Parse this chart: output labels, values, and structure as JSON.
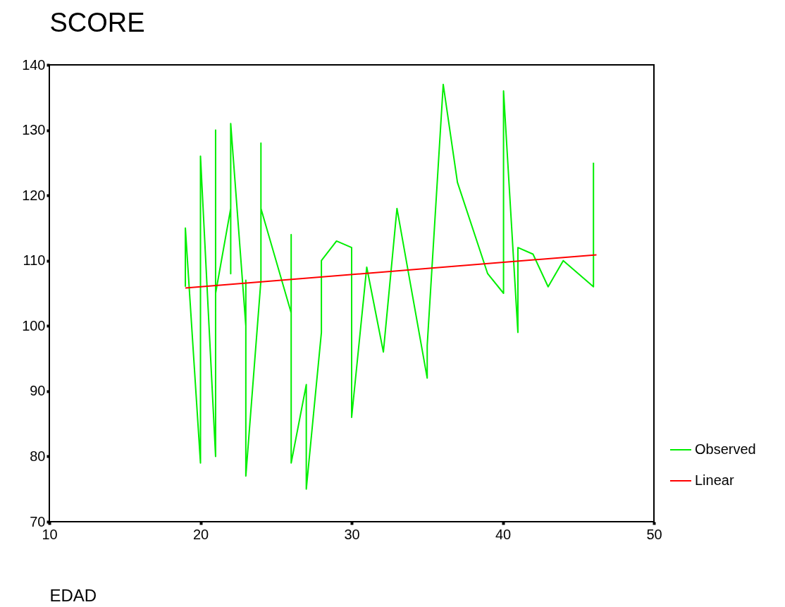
{
  "chart_data": {
    "type": "line",
    "xlabel": "EDAD",
    "ylabel": "SCORE",
    "xlim": [
      10,
      50
    ],
    "xticks": [
      10,
      20,
      30,
      40,
      50
    ],
    "ylim": [
      70,
      140
    ],
    "yticks": [
      70,
      80,
      90,
      100,
      110,
      120,
      130,
      140
    ],
    "grid": false,
    "legend": "bottom right",
    "marker": "none",
    "line_style": "solid",
    "series": [
      {
        "name": "Observed",
        "color": "#00ee00",
        "x": [
          19,
          19,
          20,
          20,
          20,
          21,
          21,
          21,
          21,
          22,
          22,
          22,
          23,
          23,
          23,
          24,
          24,
          24,
          26,
          26,
          26,
          27,
          27,
          28,
          28,
          29,
          30,
          30,
          31,
          32.1,
          33,
          35,
          35,
          36.06,
          37,
          39,
          40.05,
          40.05,
          41,
          41,
          42,
          43,
          44,
          46,
          46
        ],
        "values": [
          106,
          115,
          79,
          119,
          126,
          80,
          124,
          130,
          105,
          118,
          108,
          131,
          100,
          107,
          77,
          107,
          128,
          118,
          102,
          114,
          79,
          91,
          75,
          99,
          110,
          113,
          112,
          86,
          109,
          96,
          118,
          92,
          97,
          137,
          122,
          108,
          105,
          136,
          99,
          112,
          111,
          106,
          110,
          106,
          125
        ]
      },
      {
        "name": "Linear",
        "color": "#ff0000",
        "x": [
          19,
          46.2
        ],
        "values": [
          105.8,
          110.9
        ]
      }
    ]
  }
}
